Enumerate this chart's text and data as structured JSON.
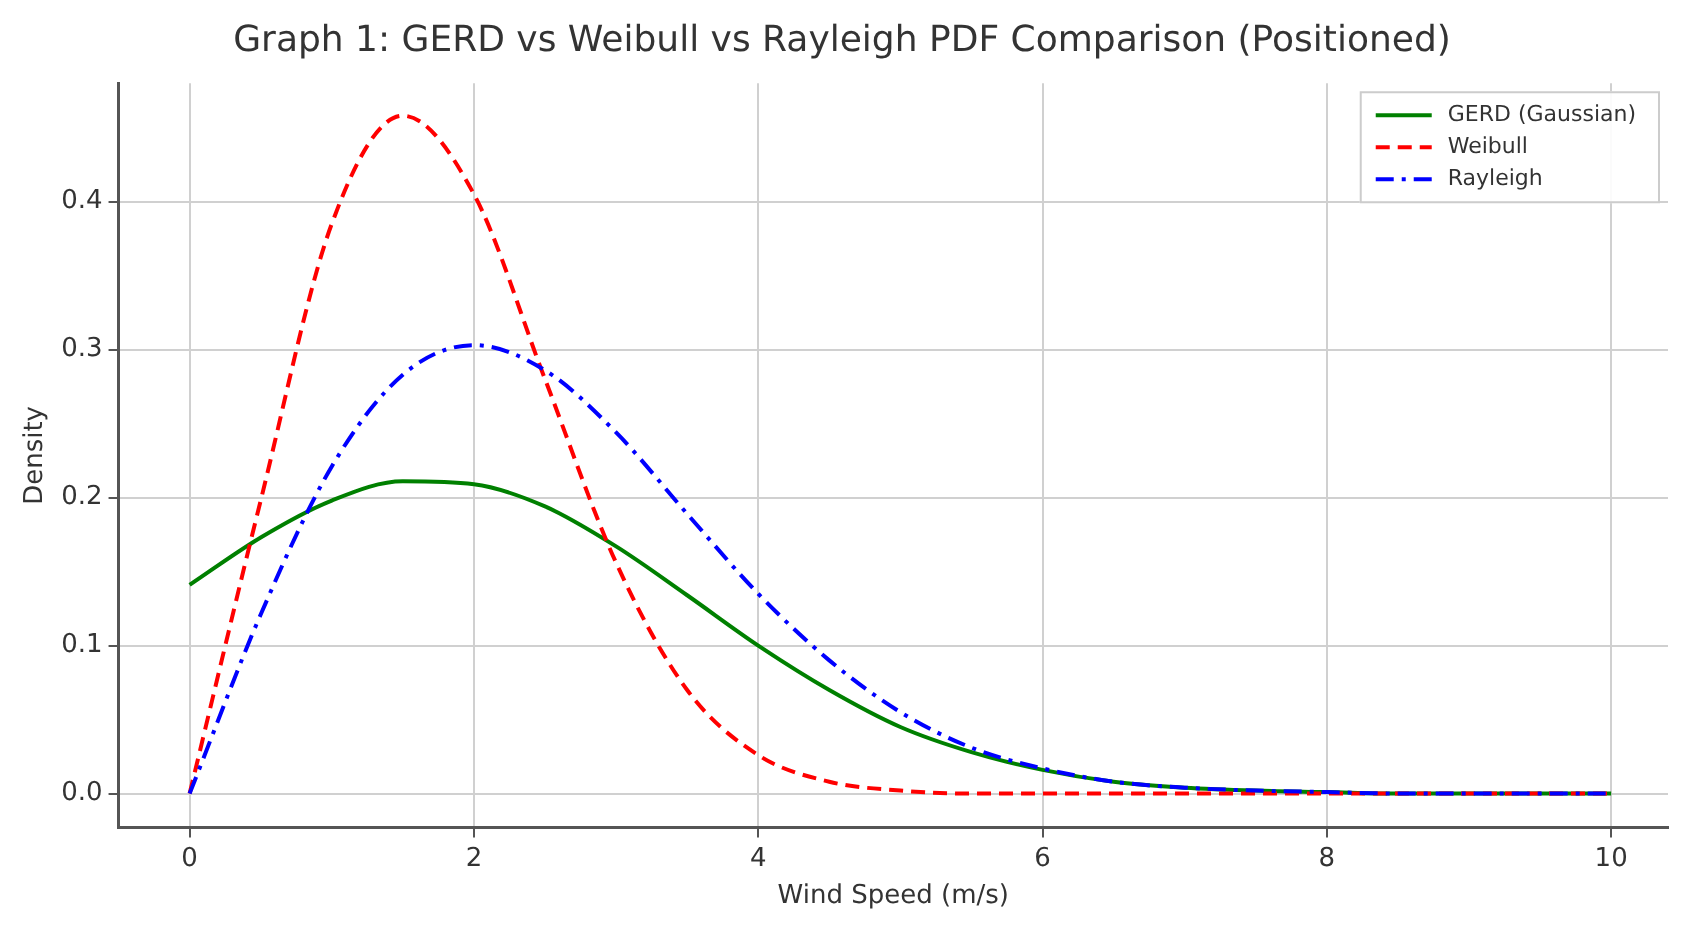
{
  "chart_data": {
    "type": "line",
    "title": "Graph 1: GERD vs Weibull vs Rayleigh PDF Comparison (Positioned)",
    "xlabel": "Wind Speed (m/s)",
    "ylabel": "Density",
    "x": [
      0,
      0.5,
      1,
      1.5,
      2,
      2.5,
      3,
      3.5,
      4,
      4.5,
      5,
      5.5,
      6,
      6.5,
      7,
      7.5,
      8,
      8.5,
      9,
      9.5,
      10
    ],
    "series": [
      {
        "name": "GERD (Gaussian)",
        "color": "#008000",
        "line_style": "solid",
        "values": [
          0.141,
          0.173,
          0.198,
          0.211,
          0.209,
          0.194,
          0.167,
          0.134,
          0.1,
          0.07,
          0.045,
          0.028,
          0.016,
          0.008,
          0.004,
          0.002,
          0.001,
          0,
          0,
          0,
          0
        ]
      },
      {
        "name": "Weibull",
        "color": "#ff0000",
        "line_style": "dashed",
        "values": [
          0,
          0.198,
          0.385,
          0.458,
          0.405,
          0.28,
          0.156,
          0.07,
          0.026,
          0.008,
          0.002,
          0,
          0,
          0,
          0,
          0,
          0,
          0,
          0,
          0,
          0
        ]
      },
      {
        "name": "Rayleigh",
        "color": "#0000ff",
        "line_style": "dotted",
        "values": [
          0,
          0.121,
          0.221,
          0.283,
          0.303,
          0.286,
          0.244,
          0.189,
          0.135,
          0.09,
          0.055,
          0.031,
          0.017,
          0.008,
          0.004,
          0.002,
          0.001,
          0,
          0,
          0,
          0
        ]
      }
    ],
    "xlim": [
      -0.5,
      10.4
    ],
    "xticks": [
      0,
      2,
      4,
      6,
      8,
      10
    ],
    "ylim": [
      -0.023,
      0.48
    ],
    "yticks": [
      {
        "value": 0,
        "label": "0.0"
      },
      0.1,
      0.2,
      0.3,
      0.4
    ],
    "grid": true,
    "legend": "top right"
  }
}
